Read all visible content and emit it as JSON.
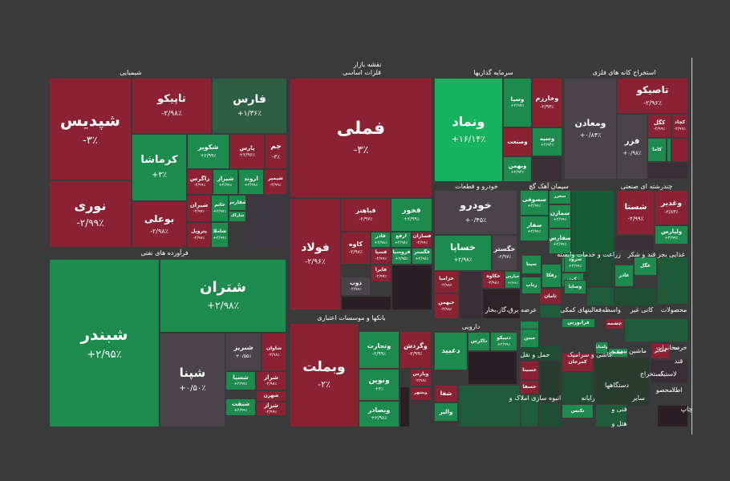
{
  "chart_data": {
    "type": "treemap",
    "title": "نقشه بازار",
    "subtitle": "فلزات اساسی",
    "colors": {
      "up": "#1d8a4e",
      "up_strong": "#16b35e",
      "down": "#8b2233",
      "down_strong": "#a11d32",
      "neutral": "#4a4349",
      "up_dim": "#2e5e45"
    },
    "sectors": [
      {
        "name": "شیمیایی"
      },
      {
        "name": "فرآورده های نفتی"
      },
      {
        "name": "فلزات اساسی"
      },
      {
        "name": "بانکها و موسسات اعتباری"
      },
      {
        "name": "سرمایه گذاریها"
      },
      {
        "name": "استخراج کانه های فلزی"
      },
      {
        "name": "خودرو و قطعات"
      },
      {
        "name": "سیمان آهک گچ"
      },
      {
        "name": "چندرشته ای صنعتی"
      },
      {
        "name": "زراعت و خدمات وابسته"
      },
      {
        "name": "غذایی بجز قند و شکر"
      },
      {
        "name": "عرضه برق،گاز،بخار"
      },
      {
        "name": "فعالیتهای کمکی"
      },
      {
        "name": "واسطه"
      },
      {
        "name": "کانی غیر"
      },
      {
        "name": "محصولات"
      },
      {
        "name": "دارویی"
      },
      {
        "name": "حمل و نقل"
      },
      {
        "name": "کاشی و سرامیک"
      },
      {
        "name": "بیمه و"
      },
      {
        "name": "ماشین"
      },
      {
        "name": "مخابرات"
      },
      {
        "name": "خرده"
      },
      {
        "name": "انبوه سازی املاک و"
      },
      {
        "name": "رایانه"
      },
      {
        "name": "دستگاهها"
      },
      {
        "name": "استخراج"
      },
      {
        "name": "لاستیک"
      },
      {
        "name": "ساير"
      },
      {
        "name": "قند"
      },
      {
        "name": "فنی و"
      },
      {
        "name": "هتل و"
      },
      {
        "name": "محصو"
      },
      {
        "name": "اطلا"
      },
      {
        "name": "چاپ"
      }
    ],
    "tiles": [
      {
        "name": "شپدیس",
        "change": "-۳٪",
        "status": "down"
      },
      {
        "name": "نوری",
        "change": "-۲/۹۹٪",
        "status": "down"
      },
      {
        "name": "تاپیکو",
        "change": "-۲/۹۸٪",
        "status": "down"
      },
      {
        "name": "فارس",
        "change": "+۱/۳۶٪",
        "status": "up_dim"
      },
      {
        "name": "کرماشا",
        "change": "+۳٪",
        "status": "up"
      },
      {
        "name": "شکویر",
        "change": "+۲/۹۹٪",
        "status": "up"
      },
      {
        "name": "پارس",
        "change": "+۲/۹۶٪",
        "status": "down"
      },
      {
        "name": "جم",
        "change": "-۳٪",
        "status": "down"
      },
      {
        "name": "زاگرس",
        "change": "-۲/۹۹٪",
        "status": "down"
      },
      {
        "name": "شیراز",
        "change": "+۲/۹۹٪",
        "status": "up"
      },
      {
        "name": "اروند",
        "change": "+۲/۹۹٪",
        "status": "up"
      },
      {
        "name": "شپمپر",
        "change": "-۲/۹۹٪",
        "status": "down"
      },
      {
        "name": "بوعلی",
        "change": "-۲/۹۸٪",
        "status": "down"
      },
      {
        "name": "شیران",
        "change": "-۲/۹۷٪",
        "status": "down"
      },
      {
        "name": "خاتم",
        "change": "+۲/۹۷٪",
        "status": "up"
      },
      {
        "name": "شفارس",
        "change": "",
        "status": "up"
      },
      {
        "name": "شاراک",
        "change": "",
        "status": "up"
      },
      {
        "name": "پتروپل",
        "change": "-۲/۹۸٪",
        "status": "down"
      },
      {
        "name": "شاملا",
        "change": "+۲/۹۹٪",
        "status": "up"
      },
      {
        "name": "شبندر",
        "change": "+۲/۹۵٪",
        "status": "up"
      },
      {
        "name": "شتران",
        "change": "+۲/۹۸٪",
        "status": "up"
      },
      {
        "name": "شپنا",
        "change": "+۰/۵۰٪",
        "status": "neutral"
      },
      {
        "name": "شبریز",
        "change": "+۰/۵۵٪",
        "status": "neutral"
      },
      {
        "name": "شاوان",
        "change": "-۲/۹۸٪",
        "status": "down"
      },
      {
        "name": "شسپا",
        "change": "+۲/۹۹٪",
        "status": "up"
      },
      {
        "name": "شراز",
        "change": "-۲/۹۸٪",
        "status": "down"
      },
      {
        "name": "شهرن",
        "change": "-۲/۹۹٪",
        "status": "down"
      },
      {
        "name": "شنفت",
        "change": "+۲/۹۹٪",
        "status": "up"
      },
      {
        "name": "شزاز",
        "change": "-۲/۹۹٪",
        "status": "down"
      },
      {
        "name": "فملی",
        "change": "-۳٪",
        "status": "down"
      },
      {
        "name": "فولاد",
        "change": "-۲/۹۶٪",
        "status": "down"
      },
      {
        "name": "فباهنر",
        "change": "-۲/۹۷٪",
        "status": "down"
      },
      {
        "name": "فخوز",
        "change": "+۲/۹۹٪",
        "status": "up"
      },
      {
        "name": "کاوه",
        "change": "-۲/۹۸٪",
        "status": "down"
      },
      {
        "name": "فاذر",
        "change": "+۲/۹۸٪",
        "status": "up"
      },
      {
        "name": "ارفع",
        "change": "+۲/۹۸٪",
        "status": "up"
      },
      {
        "name": "فسازان",
        "change": "-۲/۹۹٪",
        "status": "down"
      },
      {
        "name": "فسپا",
        "change": "-۲/۹۹٪",
        "status": "down"
      },
      {
        "name": "فروسیا",
        "change": "+۲/۹۵٪",
        "status": "up"
      },
      {
        "name": "فگستر",
        "change": "+۲/۹۸٪",
        "status": "up"
      },
      {
        "name": "فایرا",
        "change": "-۲/۹۷٪",
        "status": "down"
      },
      {
        "name": "ذوب",
        "change": "-۲/۹۸٪",
        "status": "neutral"
      },
      {
        "name": "وبملت",
        "change": "-۲٪",
        "status": "down"
      },
      {
        "name": "وتجارت",
        "change": "-۲/۹۹٪",
        "status": "up"
      },
      {
        "name": "وگردش",
        "change": "-۲/۹۹٪",
        "status": "down"
      },
      {
        "name": "ونوین",
        "change": "+۳٪",
        "status": "up"
      },
      {
        "name": "وپارس",
        "change": "-۲/۹۸٪",
        "status": "down"
      },
      {
        "name": "وبصادر",
        "change": "+۲/۹۸٪",
        "status": "up"
      },
      {
        "name": "وبشهر",
        "change": "",
        "status": "down"
      },
      {
        "name": "ونماد",
        "change": "+۱۶/۱۴٪",
        "status": "up_strong"
      },
      {
        "name": "وخارزم",
        "change": "-۲/۹۳٪",
        "status": "down"
      },
      {
        "name": "وسپا",
        "change": "+۲/۹۷٪",
        "status": "up"
      },
      {
        "name": "وصنعت",
        "change": "",
        "status": "down"
      },
      {
        "name": "وبهمن",
        "change": "+۲/۹۳٪",
        "status": "up"
      },
      {
        "name": "وسپه",
        "change": "+۲/۹۴٪",
        "status": "up"
      },
      {
        "name": "ومعادن",
        "change": "+۰/۸۴٪",
        "status": "neutral"
      },
      {
        "name": "تاصیکو",
        "change": "-۲/۹۶٪",
        "status": "down"
      },
      {
        "name": "فزر",
        "change": "+۰/۹۸٪",
        "status": "neutral"
      },
      {
        "name": "کگل",
        "change": "-۲/۹۹٪",
        "status": "down"
      },
      {
        "name": "کچاد",
        "change": "-۲/۹۹٪",
        "status": "down"
      },
      {
        "name": "کاما",
        "change": "",
        "status": "up"
      },
      {
        "name": "خودرو",
        "change": "+۰/۴۵٪",
        "status": "neutral"
      },
      {
        "name": "خساپا",
        "change": "+۲/۹۸٪",
        "status": "up"
      },
      {
        "name": "خگستر",
        "change": "-۲/۹۷٪",
        "status": "neutral"
      },
      {
        "name": "خزامیا",
        "change": "-۲/۹۸٪",
        "status": "down"
      },
      {
        "name": "خکاوه",
        "change": "-۲/۹۸٪",
        "status": "down"
      },
      {
        "name": "خیهمن",
        "change": "-۲/۹۸٪",
        "status": "down"
      },
      {
        "name": "خپارس",
        "change": "+۲/۹۸٪",
        "status": "up"
      },
      {
        "name": "سصوفی",
        "change": "+۲/۹۹٪",
        "status": "up"
      },
      {
        "name": "سمازن",
        "change": "+۲/۹۹٪",
        "status": "up"
      },
      {
        "name": "سفار",
        "change": "+۲/۹۹٪",
        "status": "up"
      },
      {
        "name": "سخزر",
        "change": "+۲/۹۹٪",
        "status": "up"
      },
      {
        "name": "سفارس",
        "change": "+۲/۹۹٪",
        "status": "up"
      },
      {
        "name": "وغدیر",
        "change": "-۲/۸۳٪",
        "status": "down"
      },
      {
        "name": "شستا",
        "change": "-۲/۹۹٪",
        "status": "down"
      },
      {
        "name": "ولپارس",
        "change": "+۲/۹۹٪",
        "status": "up"
      },
      {
        "name": "زدشت",
        "change": "",
        "status": "up"
      },
      {
        "name": "زکوثر",
        "change": "",
        "status": "up"
      },
      {
        "name": "رفکا",
        "change": "",
        "status": "up"
      },
      {
        "name": "غگل",
        "change": "",
        "status": "up"
      },
      {
        "name": "غاذر",
        "change": "",
        "status": "up"
      },
      {
        "name": "مپنا",
        "change": "",
        "status": "up"
      },
      {
        "name": "ثامان",
        "change": "",
        "status": "down"
      },
      {
        "name": "سیتا",
        "change": "",
        "status": "up"
      },
      {
        "name": "سرود",
        "change": "+۲/۹۹٪",
        "status": "up"
      },
      {
        "name": "رتاپ",
        "change": "",
        "status": "up"
      },
      {
        "name": "وساپا",
        "change": "",
        "status": "up"
      },
      {
        "name": "فرابورس",
        "change": "",
        "status": "up"
      },
      {
        "name": "کمرجان",
        "change": "",
        "status": "down"
      },
      {
        "name": "مبین",
        "change": "",
        "status": "up"
      },
      {
        "name": "چشمه",
        "change": "",
        "status": "down"
      },
      {
        "name": "دعبید",
        "change": "",
        "status": "up"
      },
      {
        "name": "دتیپکو",
        "change": "+۲/۹۹٪",
        "status": "up"
      },
      {
        "name": "ذاکرس",
        "change": "",
        "status": "up"
      },
      {
        "name": "شفا",
        "change": "",
        "status": "down"
      },
      {
        "name": "والبر",
        "change": "",
        "status": "up"
      },
      {
        "name": "حسینا",
        "change": "",
        "status": "down"
      },
      {
        "name": "حسفا",
        "change": "",
        "status": "down"
      },
      {
        "name": "تکنس",
        "change": "",
        "status": "up"
      },
      {
        "name": "اخابر",
        "change": "",
        "status": "down"
      },
      {
        "name": "بیمه",
        "change": "",
        "status": "up"
      },
      {
        "name": "ولساپا",
        "change": "",
        "status": "up"
      }
    ]
  }
}
